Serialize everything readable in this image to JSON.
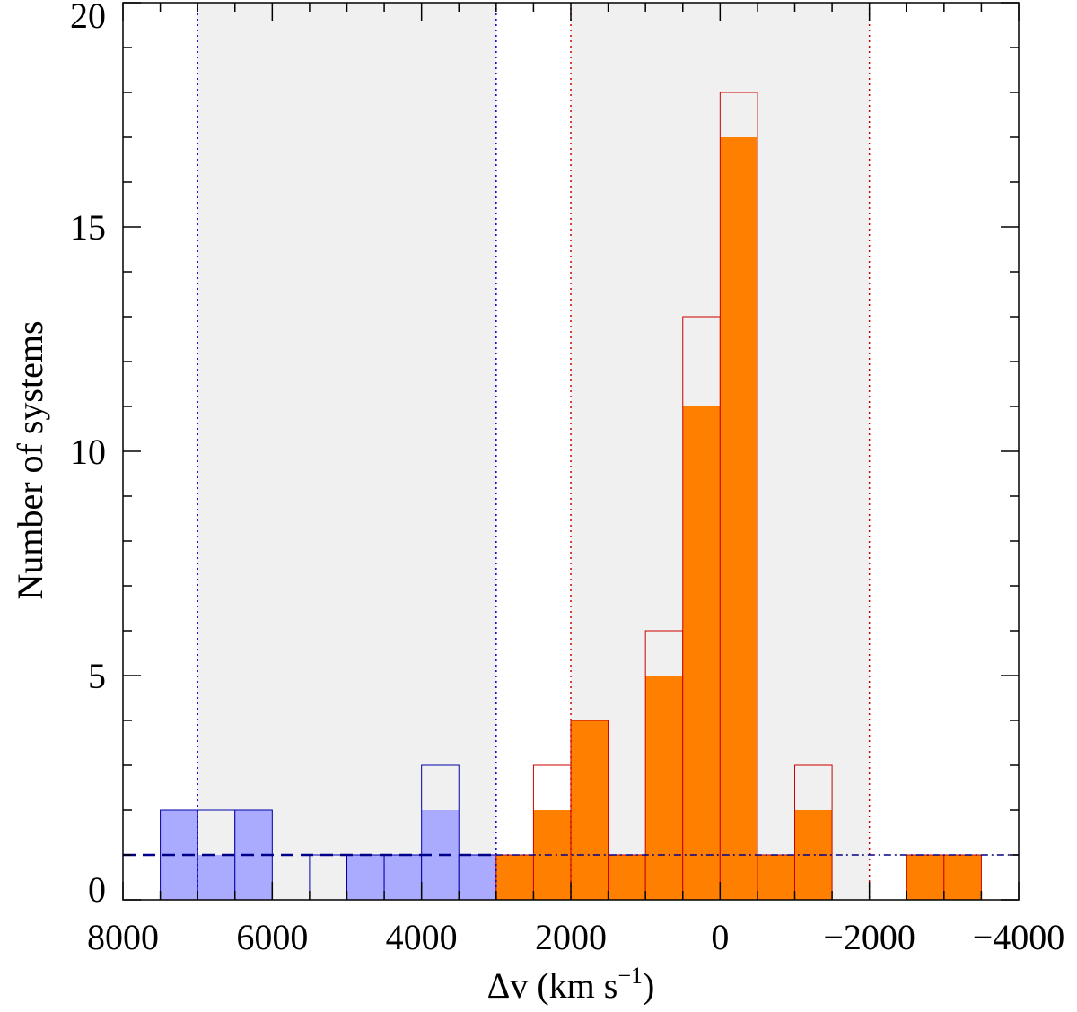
{
  "chart_data": {
    "type": "bar",
    "xlabel": "Δv (km s⁻¹)",
    "ylabel": "Number of systems",
    "xlim": [
      8000,
      -4000
    ],
    "ylim": [
      0,
      20
    ],
    "x_reversed": true,
    "xticks": [
      8000,
      6000,
      4000,
      2000,
      0,
      -2000,
      -4000
    ],
    "xtick_labels": [
      "8000",
      "6000",
      "4000",
      "2000",
      "0",
      "−2000",
      "−4000"
    ],
    "yticks": [
      0,
      5,
      10,
      15,
      20
    ],
    "bin_width": 500,
    "shaded_regions": [
      {
        "from": 7000,
        "to": 3000,
        "color": "#f0f0f0"
      },
      {
        "from": 2000,
        "to": -2000,
        "color": "#f0f0f0"
      }
    ],
    "vertical_lines": [
      {
        "x": 7000,
        "color": "#0000cc",
        "style": "dotted"
      },
      {
        "x": 3000,
        "color": "#0000cc",
        "style": "dotted"
      },
      {
        "x": 2000,
        "color": "#cc0000",
        "style": "dotted"
      },
      {
        "x": -2000,
        "color": "#cc0000",
        "style": "dotted"
      }
    ],
    "reference_line": {
      "y": 1,
      "color": "#00008b",
      "style": "dashed"
    },
    "series": [
      {
        "color": "#aaaaff",
        "edge": "#0000aa",
        "bins_left": [
          7500,
          7000,
          6500,
          6000,
          5500,
          5000,
          4500,
          4000,
          3500
        ],
        "outline": [
          2,
          2,
          2,
          0,
          1,
          1,
          1,
          3,
          1
        ],
        "filled": [
          2,
          1,
          2,
          0,
          0,
          1,
          1,
          2,
          1
        ]
      },
      {
        "color": "#ff8000",
        "edge": "#cc0000",
        "bins_left": [
          3000,
          2500,
          2000,
          1500,
          1000,
          500,
          0,
          -500,
          -1000,
          -1500,
          -2000,
          -2500,
          -3000
        ],
        "outline": [
          1,
          3,
          4,
          1,
          6,
          13,
          18,
          1,
          3,
          0,
          0,
          1,
          1
        ],
        "filled": [
          1,
          2,
          4,
          1,
          5,
          11,
          17,
          1,
          2,
          0,
          0,
          1,
          1
        ]
      }
    ]
  }
}
